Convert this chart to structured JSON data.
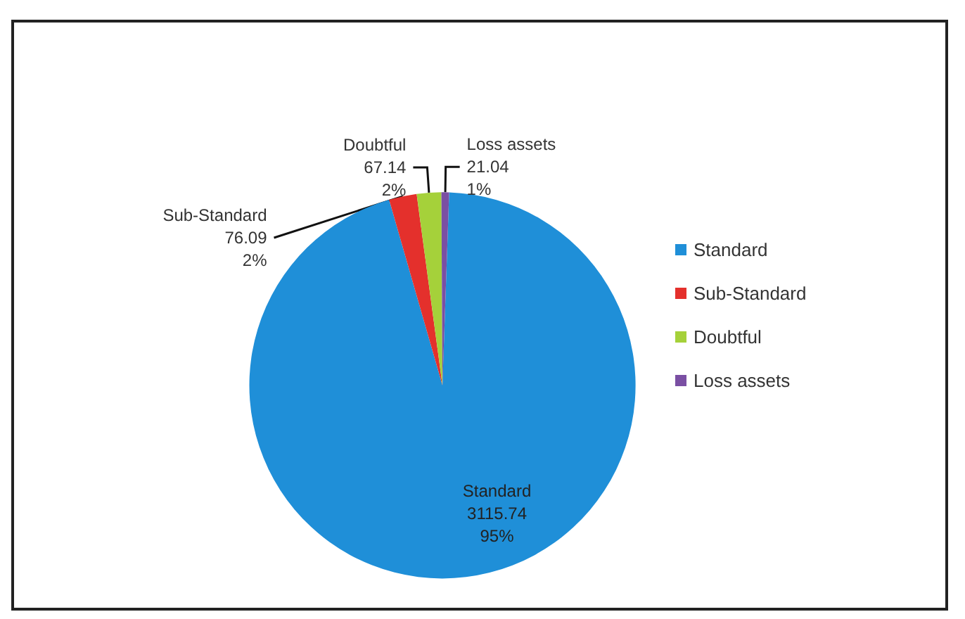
{
  "chart_data": {
    "type": "pie",
    "categories": [
      "Standard",
      "Sub-Standard",
      "Doubtful",
      "Loss assets"
    ],
    "values": [
      3115.74,
      76.09,
      67.14,
      21.04
    ],
    "colors": [
      "#1f8fd8",
      "#e4302c",
      "#a5d13a",
      "#7a4fa3"
    ],
    "value_labels": [
      "3115.74\n95%",
      "76.09\n2%",
      "67.14\n2%",
      "21.04\n1%"
    ],
    "data_labels": true,
    "legend": "right"
  }
}
